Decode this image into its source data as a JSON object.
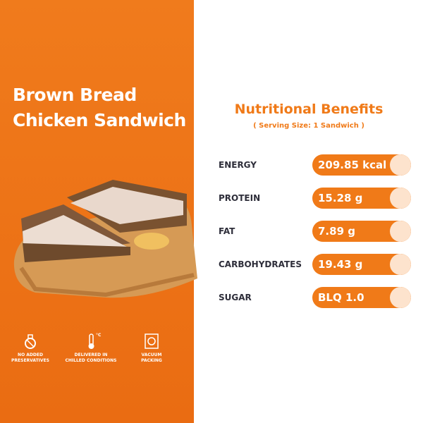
{
  "product": {
    "title_lines": [
      "Brown Bread",
      "Chicken Sandwich"
    ]
  },
  "badges": [
    {
      "label_lines": [
        "NO ADDED",
        "PRESERVATIVES"
      ]
    },
    {
      "icon_text": "°C",
      "label_lines": [
        "DELIVERED IN",
        "CHILLED CONDITIONS"
      ]
    },
    {
      "label_lines": [
        "VACUUM",
        "PACKING"
      ]
    }
  ],
  "nutrition": {
    "heading": "Nutritional Benefits",
    "serving": "( Serving Size: 1 Sandwich )",
    "rows": [
      {
        "label": "ENERGY",
        "value": "209.85 kcal"
      },
      {
        "label": "PROTEIN",
        "value": "15.28 g"
      },
      {
        "label": "FAT",
        "value": "7.89 g"
      },
      {
        "label": "CARBOHYDRATES",
        "value": "19.43 g"
      },
      {
        "label": "SUGAR",
        "value": "BLQ 1.0"
      }
    ]
  }
}
